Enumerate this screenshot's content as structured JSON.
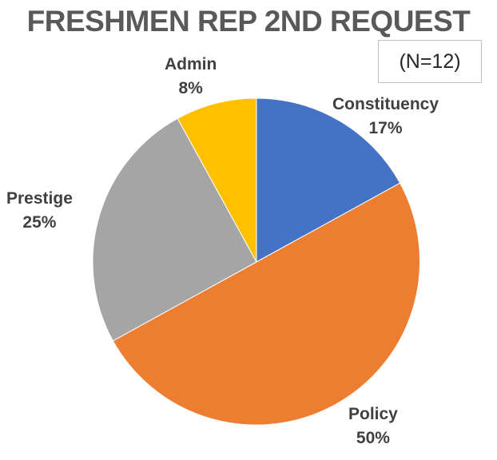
{
  "chart_data": {
    "type": "pie",
    "title": "FRESHMEN REP 2ND REQUEST",
    "annotation": "(N=12)",
    "slices": [
      {
        "name": "Constituency",
        "value": 17,
        "label": "17%",
        "color": "#4472c4"
      },
      {
        "name": "Policy",
        "value": 50,
        "label": "50%",
        "color": "#ed7d31"
      },
      {
        "name": "Prestige",
        "value": 25,
        "label": "25%",
        "color": "#a5a5a5"
      },
      {
        "name": "Admin",
        "value": 8,
        "label": "8%",
        "color": "#ffc000"
      }
    ]
  }
}
